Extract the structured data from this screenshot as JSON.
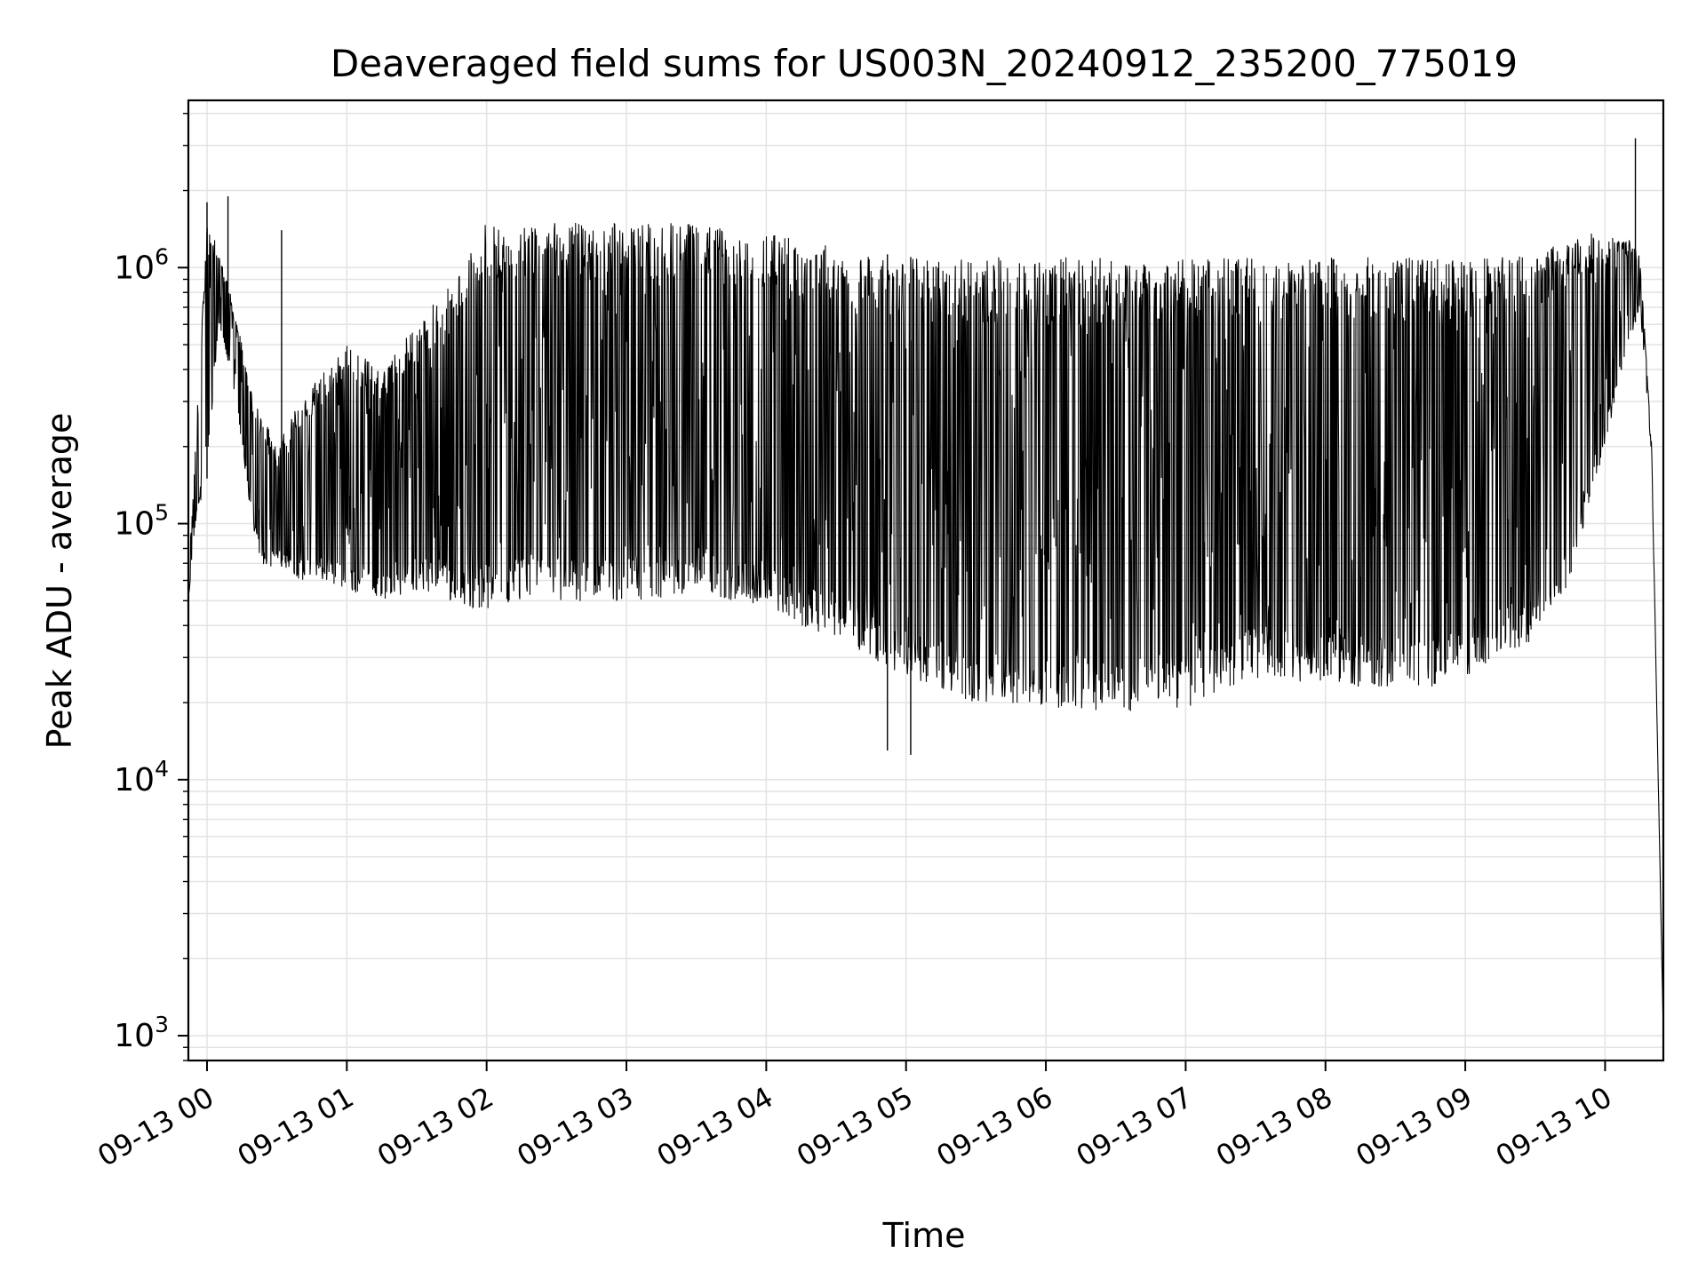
{
  "chart_data": {
    "type": "line",
    "title": "Deaveraged field sums for US003N_20240912_235200_775019",
    "xlabel": "Time",
    "ylabel": "Peak ADU - average",
    "yscale": "log",
    "ylim": [
      800,
      4500000
    ],
    "xlim": [
      "2024-09-12 23:52",
      "2024-09-13 10:25"
    ],
    "grid": true,
    "legend": "none",
    "line_color": "#000000",
    "x_ticks": [
      "09-13 00",
      "09-13 01",
      "09-13 02",
      "09-13 03",
      "09-13 04",
      "09-13 05",
      "09-13 06",
      "09-13 07",
      "09-13 08",
      "09-13 09",
      "09-13 10"
    ],
    "x_tick_times": [
      "2024-09-13 00:00",
      "2024-09-13 01:00",
      "2024-09-13 02:00",
      "2024-09-13 03:00",
      "2024-09-13 04:00",
      "2024-09-13 05:00",
      "2024-09-13 06:00",
      "2024-09-13 07:00",
      "2024-09-13 08:00",
      "2024-09-13 09:00",
      "2024-09-13 10:00"
    ],
    "y_ticks": [
      {
        "value": 1000,
        "base": "10",
        "exp": "3"
      },
      {
        "value": 10000,
        "base": "10",
        "exp": "4"
      },
      {
        "value": 100000,
        "base": "10",
        "exp": "5"
      },
      {
        "value": 1000000,
        "base": "10",
        "exp": "6"
      }
    ],
    "series": [
      {
        "envelope": {
          "x": [
            "2024-09-12 23:52",
            "2024-09-12 23:55",
            "2024-09-13 00:00",
            "2024-09-13 00:05",
            "2024-09-13 00:10",
            "2024-09-13 00:15",
            "2024-09-13 00:20",
            "2024-09-13 00:25",
            "2024-09-13 00:30",
            "2024-09-13 00:35",
            "2024-09-13 00:40",
            "2024-09-13 00:50",
            "2024-09-13 01:00",
            "2024-09-13 01:15",
            "2024-09-13 01:30",
            "2024-09-13 01:45",
            "2024-09-13 02:00",
            "2024-09-13 02:15",
            "2024-09-13 02:30",
            "2024-09-13 02:45",
            "2024-09-13 03:00",
            "2024-09-13 03:15",
            "2024-09-13 03:30",
            "2024-09-13 03:45",
            "2024-09-13 04:00",
            "2024-09-13 04:15",
            "2024-09-13 04:30",
            "2024-09-13 04:45",
            "2024-09-13 05:00",
            "2024-09-13 05:15",
            "2024-09-13 05:30",
            "2024-09-13 05:45",
            "2024-09-13 06:00",
            "2024-09-13 06:15",
            "2024-09-13 06:30",
            "2024-09-13 06:45",
            "2024-09-13 07:00",
            "2024-09-13 07:15",
            "2024-09-13 07:30",
            "2024-09-13 07:45",
            "2024-09-13 08:00",
            "2024-09-13 08:15",
            "2024-09-13 08:30",
            "2024-09-13 08:45",
            "2024-09-13 09:00",
            "2024-09-13 09:15",
            "2024-09-13 09:30",
            "2024-09-13 09:45",
            "2024-09-13 10:00",
            "2024-09-13 10:10",
            "2024-09-13 10:15",
            "2024-09-13 10:20",
            "2024-09-13 10:25"
          ],
          "baseline": [
            50000,
            100000,
            150000,
            600000,
            400000,
            200000,
            90000,
            65000,
            70000,
            65000,
            60000,
            60000,
            55000,
            50000,
            55000,
            50000,
            45000,
            50000,
            50000,
            48000,
            50000,
            50000,
            55000,
            50000,
            45000,
            40000,
            35000,
            30000,
            25000,
            22000,
            20000,
            20000,
            19000,
            19000,
            18000,
            19000,
            19000,
            22000,
            25000,
            24000,
            24000,
            23000,
            23000,
            23000,
            25000,
            30000,
            35000,
            60000,
            200000,
            500000,
            700000,
            180000,
            1000
          ],
          "peak": [
            60000,
            200000,
            1500000,
            1200000,
            800000,
            500000,
            300000,
            250000,
            200000,
            250000,
            300000,
            400000,
            500000,
            400000,
            600000,
            900000,
            1500000,
            1500000,
            1500000,
            1500000,
            1500000,
            1500000,
            1500000,
            1400000,
            1400000,
            1300000,
            1200000,
            1150000,
            1100000,
            1100000,
            1100000,
            1100000,
            1100000,
            1100000,
            1100000,
            1100000,
            1100000,
            1100000,
            1100000,
            1100000,
            1100000,
            1100000,
            1100000,
            1100000,
            1100000,
            1100000,
            1150000,
            1300000,
            1400000,
            1300000,
            1100000,
            200000,
            1000
          ]
        },
        "spikes": [
          {
            "x": "2024-09-13 00:00",
            "y": 1800000
          },
          {
            "x": "2024-09-13 00:09",
            "y": 1900000
          },
          {
            "x": "2024-09-13 00:32",
            "y": 1400000
          },
          {
            "x": "2024-09-13 04:52",
            "y": 13000
          },
          {
            "x": "2024-09-13 05:02",
            "y": 12500
          },
          {
            "x": "2024-09-13 10:13",
            "y": 3200000
          }
        ]
      }
    ]
  }
}
